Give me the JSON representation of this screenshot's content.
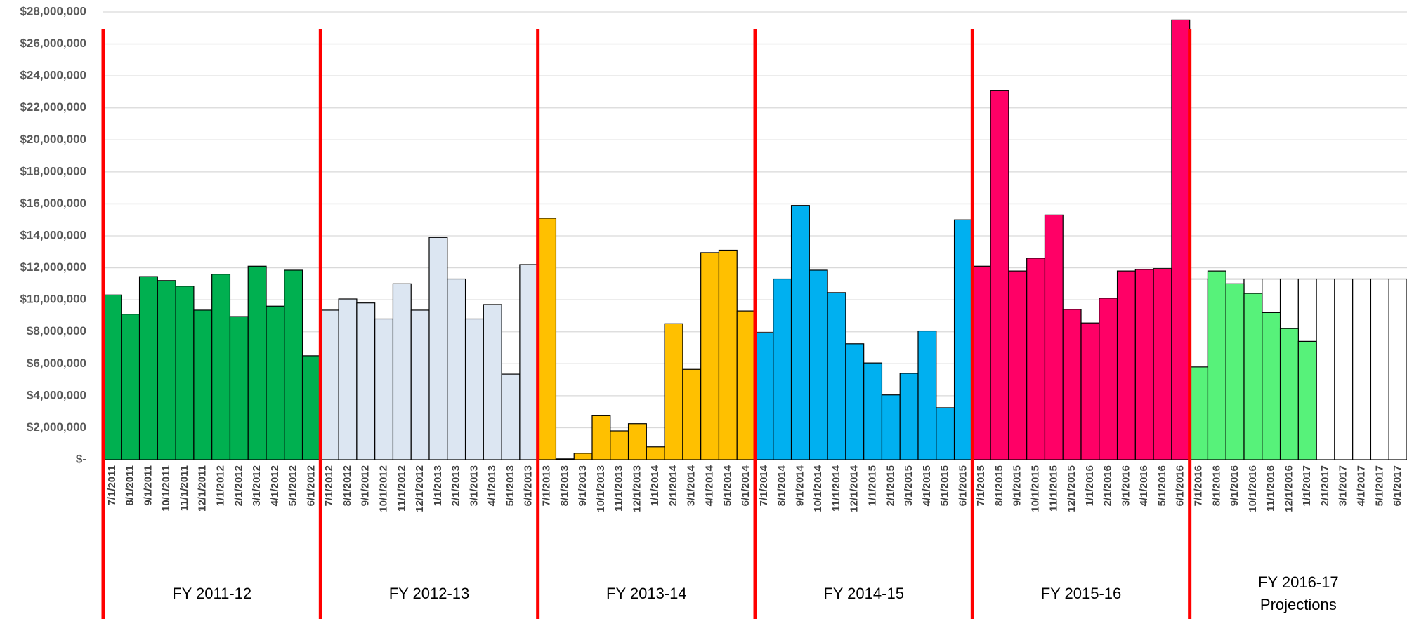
{
  "chart_data": {
    "type": "bar",
    "categories": [
      "7/1/2011",
      "8/1/2011",
      "9/1/2011",
      "10/1/2011",
      "11/1/2011",
      "12/1/2011",
      "1/1/2012",
      "2/1/2012",
      "3/1/2012",
      "4/1/2012",
      "5/1/2012",
      "6/1/2012",
      "7/1/2012",
      "8/1/2012",
      "9/1/2012",
      "10/1/2012",
      "11/1/2012",
      "12/1/2012",
      "1/1/2013",
      "2/1/2013",
      "3/1/2013",
      "4/1/2013",
      "5/1/2013",
      "6/1/2013",
      "7/1/2013",
      "8/1/2013",
      "9/1/2013",
      "10/1/2013",
      "11/1/2013",
      "12/1/2013",
      "1/1/2014",
      "2/1/2014",
      "3/1/2014",
      "4/1/2014",
      "5/1/2014",
      "6/1/2014",
      "7/1/2014",
      "8/1/2014",
      "9/1/2014",
      "10/1/2014",
      "11/1/2014",
      "12/1/2014",
      "1/1/2015",
      "2/1/2015",
      "3/1/2015",
      "4/1/2015",
      "5/1/2015",
      "6/1/2015",
      "7/1/2015",
      "8/1/2015",
      "9/1/2015",
      "10/1/2015",
      "11/1/2015",
      "12/1/2015",
      "1/1/2016",
      "2/1/2016",
      "3/1/2016",
      "4/1/2016",
      "5/1/2016",
      "6/1/2016",
      "7/1/2016",
      "8/1/2016",
      "9/1/2016",
      "10/1/2016",
      "11/1/2016",
      "12/1/2016",
      "1/1/2017",
      "2/1/2017",
      "3/1/2017",
      "4/1/2017",
      "5/1/2017",
      "6/1/2017"
    ],
    "values": [
      10300000,
      9100000,
      11450000,
      11200000,
      10850000,
      9350000,
      11600000,
      8950000,
      12100000,
      9600000,
      11850000,
      6500000,
      9350000,
      10050000,
      9800000,
      8800000,
      11000000,
      9350000,
      13900000,
      11300000,
      8800000,
      9700000,
      5350000,
      12200000,
      15100000,
      50000,
      400000,
      2750000,
      1800000,
      2250000,
      800000,
      8500000,
      5650000,
      12950000,
      13100000,
      9300000,
      7950000,
      11300000,
      15900000,
      11850000,
      10450000,
      7250000,
      6050000,
      4050000,
      5400000,
      8050000,
      3250000,
      15000000,
      12100000,
      23100000,
      11800000,
      12600000,
      15300000,
      9400000,
      8550000,
      10100000,
      11800000,
      11900000,
      11950000,
      27500000,
      5800000,
      11800000,
      11000000,
      10400000,
      9200000,
      8200000,
      7400000,
      null,
      null,
      null,
      null,
      null
    ],
    "groups": [
      {
        "label": "FY 2011-12",
        "color": "#00b050"
      },
      {
        "label": "FY 2012-13",
        "color": "#dce6f2"
      },
      {
        "label": "FY 2013-14",
        "color": "#ffc000"
      },
      {
        "label": "FY 2014-15",
        "color": "#00b0f0"
      },
      {
        "label": "FY 2015-16",
        "color": "#ff0066"
      },
      {
        "label": "FY 2016-17 Projections",
        "color": "#57f27a"
      }
    ],
    "projection_values": [
      11300000,
      11300000,
      11300000,
      11300000,
      11300000,
      11300000,
      11300000,
      11300000,
      11300000,
      11300000,
      11300000,
      11300000
    ],
    "projection_color": "#ffffff",
    "separator_color": "#ff0000",
    "ylim": [
      0,
      28000000
    ],
    "yticks": [
      {
        "value": 0,
        "label": "$-"
      },
      {
        "value": 2000000,
        "label": "$2,000,000"
      },
      {
        "value": 4000000,
        "label": "$4,000,000"
      },
      {
        "value": 6000000,
        "label": "$6,000,000"
      },
      {
        "value": 8000000,
        "label": "$8,000,000"
      },
      {
        "value": 10000000,
        "label": "$10,000,000"
      },
      {
        "value": 12000000,
        "label": "$12,000,000"
      },
      {
        "value": 14000000,
        "label": "$14,000,000"
      },
      {
        "value": 16000000,
        "label": "$16,000,000"
      },
      {
        "value": 18000000,
        "label": "$18,000,000"
      },
      {
        "value": 20000000,
        "label": "$20,000,000"
      },
      {
        "value": 22000000,
        "label": "$22,000,000"
      },
      {
        "value": 24000000,
        "label": "$24,000,000"
      },
      {
        "value": 26000000,
        "label": "$26,000,000"
      },
      {
        "value": 28000000,
        "label": "$28,000,000"
      }
    ],
    "grid": true
  }
}
